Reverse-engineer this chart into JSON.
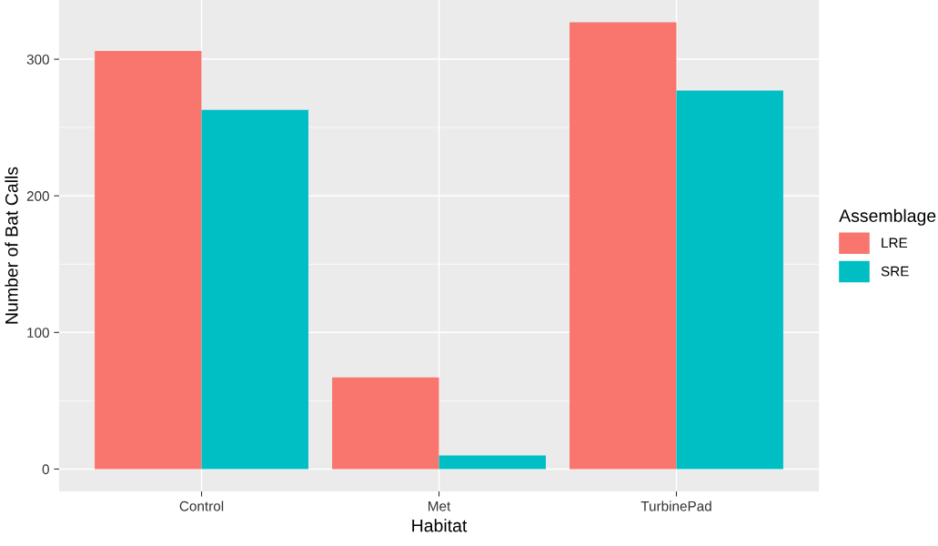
{
  "chart_data": {
    "type": "bar",
    "xlabel": "Habitat",
    "ylabel": "Number of Bat Calls",
    "legend_title": "Assemblage",
    "categories": [
      "Control",
      "Met",
      "TurbinePad"
    ],
    "series": [
      {
        "name": "LRE",
        "color": "#f8766d",
        "values": [
          306,
          67,
          327
        ]
      },
      {
        "name": "SRE",
        "color": "#00bfc4",
        "values": [
          263,
          10,
          277
        ]
      }
    ],
    "ylim": [
      -16.35,
      343.35
    ],
    "yticks": [
      0,
      100,
      200,
      300
    ],
    "grid": true,
    "legend": "right"
  }
}
